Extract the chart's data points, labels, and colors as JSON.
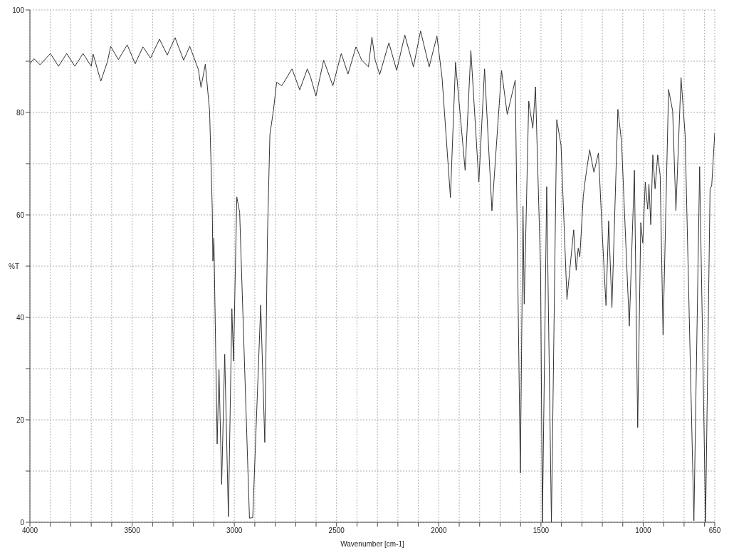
{
  "chart_data": {
    "type": "line",
    "xlabel": "Wavenumber [cm-1]",
    "ylabel": "%T",
    "x": [
      4000,
      3980,
      3950,
      3900,
      3860,
      3820,
      3780,
      3740,
      3700,
      3691,
      3653,
      3620,
      3605,
      3567,
      3524,
      3485,
      3447,
      3410,
      3366,
      3328,
      3290,
      3248,
      3218,
      3176,
      3163,
      3142,
      3121,
      3108,
      3105,
      3100,
      3084,
      3075,
      3062,
      3047,
      3029,
      3012,
      3004,
      2988,
      2974,
      2926,
      2910,
      2871,
      2851,
      2838,
      2826,
      2809,
      2793,
      2768,
      2718,
      2680,
      2643,
      2627,
      2601,
      2563,
      2518,
      2477,
      2444,
      2405,
      2377,
      2344,
      2327,
      2311,
      2289,
      2244,
      2206,
      2166,
      2124,
      2089,
      2047,
      2009,
      1984,
      1943,
      1918,
      1871,
      1843,
      1804,
      1776,
      1740,
      1693,
      1665,
      1626,
      1601,
      1588,
      1582,
      1560,
      1540,
      1527,
      1502,
      1493,
      1472,
      1449,
      1423,
      1402,
      1373,
      1340,
      1328,
      1318,
      1310,
      1293,
      1282,
      1262,
      1241,
      1219,
      1198,
      1182,
      1169,
      1153,
      1124,
      1106,
      1068,
      1043,
      1027,
      1012,
      1002,
      990,
      978,
      972,
      963,
      953,
      942,
      929,
      917,
      903,
      876,
      856,
      840,
      815,
      795,
      752,
      724,
      707,
      695,
      673,
      665,
      650
    ],
    "series": [
      {
        "color": "#333333",
        "values": [
          89.5,
          90.5,
          89.3,
          91.5,
          89,
          91.5,
          89,
          91.5,
          89,
          91.4,
          86.1,
          90,
          92.9,
          90.3,
          93.2,
          89.5,
          92.8,
          90.6,
          94.3,
          91.2,
          94.6,
          90.2,
          92.9,
          88.4,
          84.9,
          89.4,
          80.3,
          61.2,
          51,
          55.5,
          15.3,
          29.8,
          7.4,
          32.8,
          1.1,
          41.7,
          31.5,
          63.5,
          60.5,
          0.8,
          0.9,
          42.4,
          15.6,
          55.9,
          75.7,
          80.3,
          85.9,
          85.2,
          88.5,
          84.4,
          88.5,
          86.9,
          83.2,
          90.2,
          85.2,
          91.5,
          87.5,
          92.8,
          90.2,
          88.9,
          94.7,
          90.2,
          87.4,
          93.6,
          88.2,
          95.1,
          88.9,
          95.9,
          88.9,
          94.9,
          86.8,
          63.4,
          89.8,
          68.7,
          92.1,
          66.4,
          88.5,
          60.8,
          88.2,
          79.6,
          86.3,
          9.6,
          61.7,
          42.6,
          82.2,
          76.9,
          85,
          49.2,
          0,
          65.5,
          0,
          78.6,
          73.6,
          43.5,
          57.1,
          49.2,
          53.5,
          51.8,
          63.7,
          67.3,
          72.7,
          68.3,
          72.1,
          54.5,
          42.3,
          58.8,
          41.9,
          80.6,
          74.3,
          38.3,
          68.7,
          18.5,
          58.5,
          54.5,
          66.4,
          61.1,
          66,
          58.1,
          71.7,
          65.1,
          71.7,
          67.7,
          36.6,
          84.5,
          80.3,
          60.8,
          86.8,
          75.6,
          0.3,
          69.4,
          29.4,
          0,
          65,
          65.7,
          76
        ]
      }
    ],
    "xlim": [
      4000,
      650
    ],
    "xticks": [
      4000,
      {
        "value": 3900,
        "label": null
      },
      {
        "value": 3800,
        "label": null
      },
      {
        "value": 3700,
        "label": null
      },
      {
        "value": 3600,
        "label": null
      },
      3500,
      {
        "value": 3400,
        "label": null
      },
      {
        "value": 3300,
        "label": null
      },
      {
        "value": 3200,
        "label": null
      },
      {
        "value": 3100,
        "label": null
      },
      3000,
      {
        "value": 2900,
        "label": null
      },
      {
        "value": 2800,
        "label": null
      },
      {
        "value": 2700,
        "label": null
      },
      {
        "value": 2600,
        "label": null
      },
      2500,
      {
        "value": 2400,
        "label": null
      },
      {
        "value": 2300,
        "label": null
      },
      {
        "value": 2200,
        "label": null
      },
      {
        "value": 2100,
        "label": null
      },
      2000,
      {
        "value": 1900,
        "label": null
      },
      {
        "value": 1800,
        "label": null
      },
      {
        "value": 1700,
        "label": null
      },
      {
        "value": 1600,
        "label": null
      },
      1500,
      {
        "value": 1400,
        "label": null
      },
      {
        "value": 1300,
        "label": null
      },
      {
        "value": 1200,
        "label": null
      },
      {
        "value": 1100,
        "label": null
      },
      1000,
      {
        "value": 900,
        "label": null
      },
      {
        "value": 800,
        "label": null
      },
      {
        "value": 700,
        "label": null
      },
      650
    ],
    "ylim": [
      0,
      100
    ],
    "yticks": [
      0,
      {
        "value": 10,
        "label": null
      },
      20,
      {
        "value": 30,
        "label": null
      },
      40,
      {
        "value": 50,
        "label": null
      },
      60,
      {
        "value": 70,
        "label": null
      },
      80,
      {
        "value": 90,
        "label": null
      },
      100
    ],
    "grid": true,
    "marker": "none",
    "line_style": "solid",
    "legend": false
  }
}
